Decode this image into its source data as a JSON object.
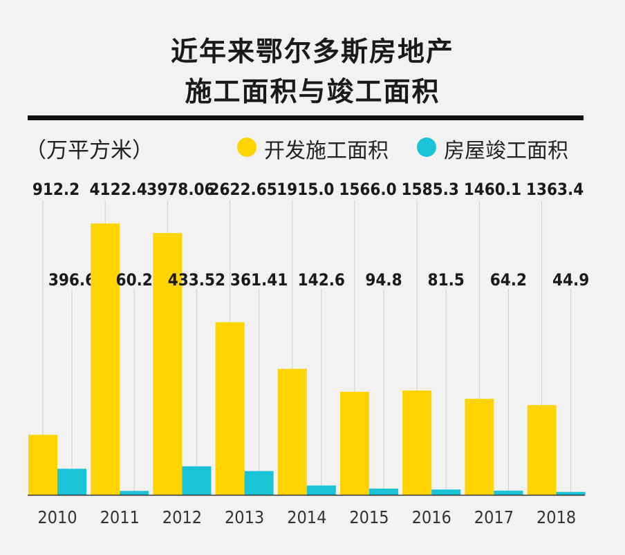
{
  "colors": {
    "primary": "#ffd400",
    "secondary": "#1bc3d6",
    "background": "#f2f2f2",
    "text": "#1a1a1a"
  },
  "chart_data": {
    "type": "bar",
    "title": "近年来鄂尔多斯房地产",
    "subtitle": "施工面积与竣工面积",
    "unit_label": "（万平方米）",
    "categories": [
      "2010",
      "2011",
      "2012",
      "2013",
      "2014",
      "2015",
      "2016",
      "2017",
      "2018"
    ],
    "series": [
      {
        "name": "开发施工面积",
        "color": "#ffd400",
        "values": [
          912.2,
          4122.4,
          3978.06,
          2622.65,
          1915.0,
          1566.0,
          1585.3,
          1460.1,
          1363.4
        ],
        "labels": [
          "912.2",
          "4122.4",
          "3978.06",
          "2622.65",
          "1915.0",
          "1566.0",
          "1585.3",
          "1460.1",
          "1363.4"
        ]
      },
      {
        "name": "房屋竣工面积",
        "color": "#1bc3d6",
        "values": [
          396.6,
          60.2,
          433.52,
          361.41,
          142.6,
          94.8,
          81.5,
          64.2,
          44.9
        ],
        "labels": [
          "396.6",
          "60.2",
          "433.52",
          "361.41",
          "142.6",
          "94.8",
          "81.5",
          "64.2",
          "44.9"
        ]
      }
    ],
    "xlabel": "",
    "ylabel": "",
    "ylim": [
      0,
      4200
    ],
    "legend": "top-right",
    "grid": false
  }
}
